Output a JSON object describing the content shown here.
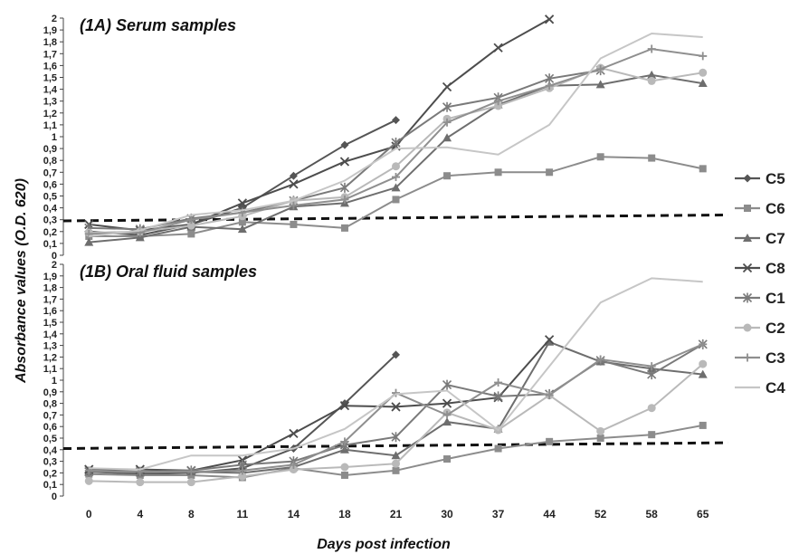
{
  "chart_data": {
    "type": "line",
    "xlabel": "Days post infection",
    "ylabel": "Absorbance values (O.D. 620)",
    "x": [
      "0",
      "4",
      "8",
      "11",
      "14",
      "18",
      "21",
      "30",
      "37",
      "44",
      "52",
      "58",
      "65"
    ],
    "y_ticks": [
      "0",
      "0,1",
      "0,2",
      "0,3",
      "0,4",
      "0,5",
      "0,6",
      "0,7",
      "0,8",
      "0,9",
      "1",
      "1,1",
      "1,2",
      "1,3",
      "1,4",
      "1,5",
      "1,6",
      "1,7",
      "1,8",
      "1,9",
      "2"
    ],
    "ylim": [
      0,
      2
    ],
    "legend": {
      "position": "right",
      "entries": [
        "C5",
        "C6",
        "C7",
        "C8",
        "C1",
        "C2",
        "C3",
        "C4"
      ]
    },
    "series_styles": [
      {
        "name": "C5",
        "color": "#555555",
        "marker": "diamond"
      },
      {
        "name": "C6",
        "color": "#8c8c8c",
        "marker": "square"
      },
      {
        "name": "C7",
        "color": "#6e6e6e",
        "marker": "triangle"
      },
      {
        "name": "C8",
        "color": "#4d4d4d",
        "marker": "x"
      },
      {
        "name": "C1",
        "color": "#7a7a7a",
        "marker": "star"
      },
      {
        "name": "C2",
        "color": "#b9b9b9",
        "marker": "circle"
      },
      {
        "name": "C3",
        "color": "#8f8f8f",
        "marker": "plus"
      },
      {
        "name": "C4",
        "color": "#c6c6c6",
        "marker": "none"
      }
    ],
    "panels": [
      {
        "title": "(1A) Serum samples",
        "threshold": [
          0.29,
          0.34
        ],
        "series": [
          {
            "name": "C5",
            "values": [
              0.2,
              0.17,
              0.26,
              0.4,
              0.67,
              0.93,
              1.14,
              null,
              null,
              null,
              null,
              null,
              null
            ]
          },
          {
            "name": "C6",
            "values": [
              0.16,
              0.16,
              0.18,
              0.28,
              0.26,
              0.23,
              0.47,
              0.67,
              0.7,
              0.7,
              0.83,
              0.82,
              0.73
            ]
          },
          {
            "name": "C7",
            "values": [
              0.11,
              0.15,
              0.24,
              0.22,
              0.41,
              0.44,
              0.57,
              0.99,
              1.27,
              1.43,
              1.44,
              1.52,
              1.45
            ]
          },
          {
            "name": "C8",
            "values": [
              0.26,
              0.21,
              0.26,
              0.44,
              0.6,
              0.79,
              0.92,
              1.42,
              1.75,
              1.99,
              null,
              null,
              null
            ]
          },
          {
            "name": "C1",
            "values": [
              0.23,
              0.22,
              0.31,
              0.36,
              0.46,
              0.57,
              0.95,
              1.25,
              1.33,
              1.49,
              1.56,
              null,
              null
            ]
          },
          {
            "name": "C2",
            "values": [
              0.19,
              0.2,
              0.25,
              0.33,
              0.46,
              0.49,
              0.75,
              1.15,
              1.26,
              1.41,
              1.58,
              1.47,
              1.54
            ]
          },
          {
            "name": "C3",
            "values": [
              0.18,
              0.19,
              0.3,
              0.36,
              0.42,
              0.47,
              0.66,
              1.12,
              1.3,
              1.43,
              1.57,
              1.74,
              1.68
            ]
          },
          {
            "name": "C4",
            "values": [
              0.16,
              0.21,
              0.34,
              0.38,
              0.46,
              0.63,
              0.9,
              0.91,
              0.85,
              1.1,
              1.66,
              1.87,
              1.84
            ]
          }
        ]
      },
      {
        "title": "(1B) Oral fluid samples",
        "threshold": [
          0.41,
          0.46
        ],
        "series": [
          {
            "name": "C5",
            "values": [
              0.21,
              0.19,
              0.2,
              0.24,
              0.41,
              0.8,
              1.22,
              null,
              null,
              null,
              null,
              null,
              null
            ]
          },
          {
            "name": "C6",
            "values": [
              0.19,
              0.18,
              0.18,
              0.16,
              0.24,
              0.18,
              0.22,
              0.32,
              0.41,
              0.47,
              0.5,
              0.53,
              0.61
            ]
          },
          {
            "name": "C7",
            "values": [
              0.21,
              0.2,
              0.21,
              0.2,
              0.25,
              0.4,
              0.35,
              0.64,
              0.58,
              1.33,
              1.16,
              1.1,
              1.05
            ]
          },
          {
            "name": "C8",
            "values": [
              0.23,
              0.23,
              0.22,
              0.31,
              0.54,
              0.78,
              0.77,
              0.8,
              0.85,
              1.35,
              null,
              null,
              null
            ]
          },
          {
            "name": "C1",
            "values": [
              0.21,
              0.21,
              0.22,
              0.27,
              0.3,
              0.44,
              0.51,
              0.96,
              0.86,
              0.88,
              1.17,
              1.05,
              1.31
            ]
          },
          {
            "name": "C2",
            "values": [
              0.13,
              0.12,
              0.12,
              0.17,
              0.23,
              0.25,
              0.28,
              0.72,
              0.57,
              0.87,
              0.56,
              0.76,
              1.14
            ]
          },
          {
            "name": "C3",
            "values": [
              0.22,
              0.21,
              0.21,
              0.22,
              0.27,
              0.47,
              0.89,
              0.7,
              0.98,
              0.87,
              1.18,
              1.12,
              1.31
            ]
          },
          {
            "name": "C4",
            "values": [
              0.24,
              0.23,
              0.35,
              0.35,
              0.41,
              0.58,
              0.88,
              0.91,
              0.57,
              1.12,
              1.67,
              1.88,
              1.85
            ]
          }
        ]
      }
    ]
  }
}
